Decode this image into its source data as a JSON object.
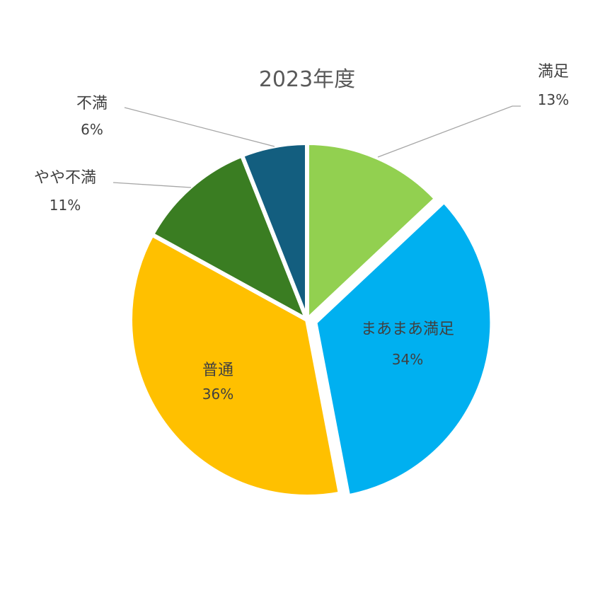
{
  "chart_data": {
    "type": "pie",
    "title": "2023年度",
    "slices": [
      {
        "label": "満足",
        "percent_text": "13%",
        "value": 13,
        "color": "#92d050"
      },
      {
        "label": "まあまあ満足",
        "percent_text": "34%",
        "value": 34,
        "color": "#00b0f0"
      },
      {
        "label": "普通",
        "percent_text": "36%",
        "value": 36,
        "color": "#ffc000"
      },
      {
        "label": "やや不満",
        "percent_text": "11%",
        "value": 11,
        "color": "#3a7d22"
      },
      {
        "label": "不満",
        "percent_text": "6%",
        "value": 6,
        "color": "#135e7f"
      }
    ],
    "start_angle": "12 o'clock, clockwise",
    "legend": "none (data labels on/next to slices)"
  }
}
